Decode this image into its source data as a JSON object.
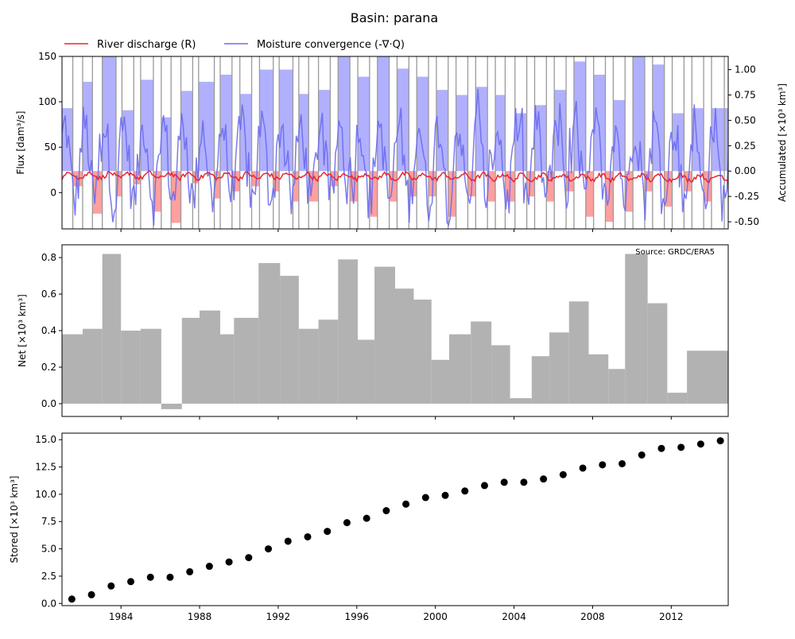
{
  "title": "Basin: parana",
  "source_note": "Source: GRDC/ERA5",
  "legend": {
    "discharge": {
      "label": "River discharge (R)",
      "color": "#e8262b"
    },
    "convergence": {
      "label": "Moisture convergence (-∇·Q)",
      "color": "#6b6bf0"
    }
  },
  "colors": {
    "positive_fill": "#b0b0ff",
    "negative_fill": "#ff9f9f",
    "net_bar": "#b2b2b2",
    "stored_marker": "#000000",
    "year_line": "#9a9a9a"
  },
  "chart_data": [
    {
      "type": "line",
      "title": "",
      "ylabel": "Flux [dam³/s]",
      "ylim": [
        -40,
        150
      ],
      "yticks": [
        0,
        50,
        100,
        150
      ],
      "y2label": "Accumulated [×10³ km³]",
      "y2lim": [
        -0.57,
        1.13
      ],
      "y2ticks": [
        -0.5,
        -0.25,
        0.0,
        0.25,
        0.5,
        0.75,
        1.0
      ],
      "xlim": [
        1981.0,
        2014.9
      ],
      "accumulated_bars": [
        {
          "x0": 1981.0,
          "x1": 1981.55,
          "v": 0.62
        },
        {
          "x0": 1981.55,
          "x1": 1982.05,
          "v": -0.15
        },
        {
          "x0": 1982.05,
          "x1": 1982.55,
          "v": 0.88
        },
        {
          "x0": 1982.55,
          "x1": 1983.05,
          "v": -0.42
        },
        {
          "x0": 1983.05,
          "x1": 1983.75,
          "v": 1.18
        },
        {
          "x0": 1983.75,
          "x1": 1984.05,
          "v": -0.25
        },
        {
          "x0": 1984.05,
          "x1": 1984.65,
          "v": 0.6
        },
        {
          "x0": 1984.65,
          "x1": 1985.0,
          "v": -0.13
        },
        {
          "x0": 1985.0,
          "x1": 1985.65,
          "v": 0.9
        },
        {
          "x0": 1985.65,
          "x1": 1986.05,
          "v": -0.4
        },
        {
          "x0": 1986.05,
          "x1": 1986.55,
          "v": 0.53
        },
        {
          "x0": 1986.55,
          "x1": 1987.05,
          "v": -0.51
        },
        {
          "x0": 1987.05,
          "x1": 1987.65,
          "v": 0.79
        },
        {
          "x0": 1987.65,
          "x1": 1987.95,
          "v": -0.12
        },
        {
          "x0": 1987.95,
          "x1": 1988.75,
          "v": 0.88
        },
        {
          "x0": 1988.75,
          "x1": 1989.05,
          "v": -0.27
        },
        {
          "x0": 1989.05,
          "x1": 1989.65,
          "v": 0.95
        },
        {
          "x0": 1989.65,
          "x1": 1990.05,
          "v": -0.2
        },
        {
          "x0": 1990.05,
          "x1": 1990.65,
          "v": 0.76
        },
        {
          "x0": 1990.65,
          "x1": 1991.05,
          "v": -0.15
        },
        {
          "x0": 1991.05,
          "x1": 1991.75,
          "v": 1.0
        },
        {
          "x0": 1991.75,
          "x1": 1992.05,
          "v": -0.2
        },
        {
          "x0": 1992.05,
          "x1": 1992.75,
          "v": 1.0
        },
        {
          "x0": 1992.75,
          "x1": 1993.05,
          "v": -0.3
        },
        {
          "x0": 1993.05,
          "x1": 1993.55,
          "v": 0.76
        },
        {
          "x0": 1993.55,
          "x1": 1994.05,
          "v": -0.3
        },
        {
          "x0": 1994.05,
          "x1": 1994.65,
          "v": 0.8
        },
        {
          "x0": 1994.65,
          "x1": 1995.05,
          "v": -0.15
        },
        {
          "x0": 1995.05,
          "x1": 1995.65,
          "v": 1.13
        },
        {
          "x0": 1995.65,
          "x1": 1996.05,
          "v": -0.3
        },
        {
          "x0": 1996.05,
          "x1": 1996.65,
          "v": 0.93
        },
        {
          "x0": 1996.65,
          "x1": 1997.05,
          "v": -0.45
        },
        {
          "x0": 1997.05,
          "x1": 1997.65,
          "v": 1.15
        },
        {
          "x0": 1997.65,
          "x1": 1998.05,
          "v": -0.3
        },
        {
          "x0": 1998.05,
          "x1": 1998.65,
          "v": 1.01
        },
        {
          "x0": 1998.65,
          "x1": 1999.05,
          "v": -0.25
        },
        {
          "x0": 1999.05,
          "x1": 1999.65,
          "v": 0.93
        },
        {
          "x0": 1999.65,
          "x1": 2000.05,
          "v": -0.25
        },
        {
          "x0": 2000.05,
          "x1": 2000.65,
          "v": 0.8
        },
        {
          "x0": 2000.65,
          "x1": 2001.05,
          "v": -0.45
        },
        {
          "x0": 2001.05,
          "x1": 2001.65,
          "v": 0.75
        },
        {
          "x0": 2001.65,
          "x1": 2002.05,
          "v": -0.25
        },
        {
          "x0": 2002.05,
          "x1": 2002.65,
          "v": 0.83
        },
        {
          "x0": 2002.65,
          "x1": 2003.05,
          "v": -0.3
        },
        {
          "x0": 2003.05,
          "x1": 2003.55,
          "v": 0.75
        },
        {
          "x0": 2003.55,
          "x1": 2004.05,
          "v": -0.3
        },
        {
          "x0": 2004.05,
          "x1": 2004.65,
          "v": 0.57
        },
        {
          "x0": 2004.65,
          "x1": 2005.05,
          "v": -0.25
        },
        {
          "x0": 2005.05,
          "x1": 2005.65,
          "v": 0.65
        },
        {
          "x0": 2005.65,
          "x1": 2006.05,
          "v": -0.3
        },
        {
          "x0": 2006.05,
          "x1": 2006.65,
          "v": 0.8
        },
        {
          "x0": 2006.65,
          "x1": 2007.05,
          "v": -0.2
        },
        {
          "x0": 2007.05,
          "x1": 2007.65,
          "v": 1.08
        },
        {
          "x0": 2007.65,
          "x1": 2008.05,
          "v": -0.45
        },
        {
          "x0": 2008.05,
          "x1": 2008.65,
          "v": 0.95
        },
        {
          "x0": 2008.65,
          "x1": 2009.05,
          "v": -0.5
        },
        {
          "x0": 2009.05,
          "x1": 2009.65,
          "v": 0.7
        },
        {
          "x0": 2009.65,
          "x1": 2010.05,
          "v": -0.4
        },
        {
          "x0": 2010.05,
          "x1": 2010.65,
          "v": 1.13
        },
        {
          "x0": 2010.65,
          "x1": 2011.05,
          "v": -0.2
        },
        {
          "x0": 2011.05,
          "x1": 2011.65,
          "v": 1.05
        },
        {
          "x0": 2011.65,
          "x1": 2012.05,
          "v": -0.35
        },
        {
          "x0": 2012.05,
          "x1": 2012.65,
          "v": 0.57
        },
        {
          "x0": 2012.65,
          "x1": 2013.05,
          "v": -0.2
        },
        {
          "x0": 2013.05,
          "x1": 2013.65,
          "v": 0.62
        },
        {
          "x0": 2013.65,
          "x1": 2014.05,
          "v": -0.3
        },
        {
          "x0": 2014.05,
          "x1": 2014.9,
          "v": 0.62
        }
      ],
      "year_lines": [
        1981.55,
        1982.05,
        1982.55,
        1983.05,
        1983.75,
        1984.05,
        1984.65,
        1985.0,
        1985.65,
        1986.05,
        1986.55,
        1987.05,
        1987.65,
        1987.95,
        1988.75,
        1989.05,
        1989.65,
        1990.05,
        1990.65,
        1991.05,
        1991.75,
        1992.05,
        1992.75,
        1993.05,
        1993.55,
        1994.05,
        1994.65,
        1995.05,
        1995.65,
        1996.05,
        1996.65,
        1997.05,
        1997.65,
        1998.05,
        1998.65,
        1999.05,
        1999.65,
        2000.05,
        2000.65,
        2001.05,
        2001.65,
        2002.05,
        2002.65,
        2003.05,
        2003.55,
        2004.05,
        2004.65,
        2005.05,
        2005.65,
        2006.05,
        2006.65,
        2007.05,
        2007.65,
        2008.05,
        2008.65,
        2009.05,
        2009.65,
        2010.05,
        2010.65,
        2011.05,
        2011.65,
        2012.05,
        2012.65,
        2013.05,
        2013.65,
        2014.05,
        2014.7
      ],
      "series": [
        {
          "name": "River discharge (R)",
          "model": {
            "base": 19,
            "amp": 5,
            "noise": 2.5,
            "trend": -0.08
          }
        },
        {
          "name": "Moisture convergence (-∇·Q)",
          "model": {
            "base": 33,
            "amp": 70,
            "noise": 28
          }
        }
      ]
    },
    {
      "type": "bar",
      "ylabel": "Net [×10³ km³]",
      "ylim": [
        -0.07,
        0.87
      ],
      "yticks": [
        0.0,
        0.2,
        0.4,
        0.6,
        0.8
      ],
      "xlim": [
        1981.0,
        2014.9
      ],
      "bars": [
        {
          "x0": 1981.0,
          "x1": 1982.05,
          "v": 0.38
        },
        {
          "x0": 1982.05,
          "x1": 1983.05,
          "v": 0.41
        },
        {
          "x0": 1983.05,
          "x1": 1984.0,
          "v": 0.82
        },
        {
          "x0": 1984.0,
          "x1": 1985.0,
          "v": 0.4
        },
        {
          "x0": 1985.0,
          "x1": 1986.05,
          "v": 0.41
        },
        {
          "x0": 1986.05,
          "x1": 1987.1,
          "v": -0.03
        },
        {
          "x0": 1987.1,
          "x1": 1988.0,
          "v": 0.47
        },
        {
          "x0": 1988.0,
          "x1": 1989.05,
          "v": 0.51
        },
        {
          "x0": 1989.05,
          "x1": 1989.75,
          "v": 0.38
        },
        {
          "x0": 1989.75,
          "x1": 1991.0,
          "v": 0.47
        },
        {
          "x0": 1991.0,
          "x1": 1992.1,
          "v": 0.77
        },
        {
          "x0": 1992.1,
          "x1": 1993.05,
          "v": 0.7
        },
        {
          "x0": 1993.05,
          "x1": 1994.05,
          "v": 0.41
        },
        {
          "x0": 1994.05,
          "x1": 1995.05,
          "v": 0.46
        },
        {
          "x0": 1995.05,
          "x1": 1996.05,
          "v": 0.79
        },
        {
          "x0": 1996.05,
          "x1": 1996.9,
          "v": 0.35
        },
        {
          "x0": 1996.9,
          "x1": 1997.95,
          "v": 0.75
        },
        {
          "x0": 1997.95,
          "x1": 1998.9,
          "v": 0.63
        },
        {
          "x0": 1998.9,
          "x1": 1999.8,
          "v": 0.57
        },
        {
          "x0": 1999.8,
          "x1": 2000.7,
          "v": 0.24
        },
        {
          "x0": 2000.7,
          "x1": 2001.8,
          "v": 0.38
        },
        {
          "x0": 2001.8,
          "x1": 2002.85,
          "v": 0.45
        },
        {
          "x0": 2002.85,
          "x1": 2003.8,
          "v": 0.32
        },
        {
          "x0": 2003.8,
          "x1": 2004.9,
          "v": 0.03
        },
        {
          "x0": 2004.9,
          "x1": 2005.8,
          "v": 0.26
        },
        {
          "x0": 2005.8,
          "x1": 2006.8,
          "v": 0.39
        },
        {
          "x0": 2006.8,
          "x1": 2007.8,
          "v": 0.56
        },
        {
          "x0": 2007.8,
          "x1": 2008.8,
          "v": 0.27
        },
        {
          "x0": 2008.8,
          "x1": 2009.65,
          "v": 0.19
        },
        {
          "x0": 2009.65,
          "x1": 2010.8,
          "v": 0.82
        },
        {
          "x0": 2010.8,
          "x1": 2011.8,
          "v": 0.55
        },
        {
          "x0": 2011.8,
          "x1": 2012.8,
          "v": 0.06
        },
        {
          "x0": 2012.8,
          "x1": 2014.9,
          "v": 0.29
        }
      ]
    },
    {
      "type": "scatter",
      "ylabel": "Stored [×10³ km³]",
      "ylim": [
        -0.2,
        15.6
      ],
      "yticks": [
        0.0,
        2.5,
        5.0,
        7.5,
        10.0,
        12.5,
        15.0
      ],
      "xlim": [
        1981.0,
        2014.9
      ],
      "xticks": [
        1984,
        1988,
        1992,
        1996,
        2000,
        2004,
        2008,
        2012
      ],
      "x": [
        1981.5,
        1982.5,
        1983.5,
        1984.5,
        1985.5,
        1986.5,
        1987.5,
        1988.5,
        1989.5,
        1990.5,
        1991.5,
        1992.5,
        1993.5,
        1994.5,
        1995.5,
        1996.5,
        1997.5,
        1998.5,
        1999.5,
        2000.5,
        2001.5,
        2002.5,
        2003.5,
        2004.5,
        2005.5,
        2006.5,
        2007.5,
        2008.5,
        2009.5,
        2010.5,
        2011.5,
        2012.5,
        2013.5,
        2014.5
      ],
      "y": [
        0.4,
        0.8,
        1.6,
        2.0,
        2.4,
        2.4,
        2.9,
        3.4,
        3.8,
        4.2,
        5.0,
        5.7,
        6.1,
        6.6,
        7.4,
        7.8,
        8.5,
        9.1,
        9.7,
        9.9,
        10.3,
        10.8,
        11.1,
        11.1,
        11.4,
        11.8,
        12.4,
        12.7,
        12.8,
        13.6,
        14.2,
        14.3,
        14.6,
        14.9
      ]
    }
  ]
}
